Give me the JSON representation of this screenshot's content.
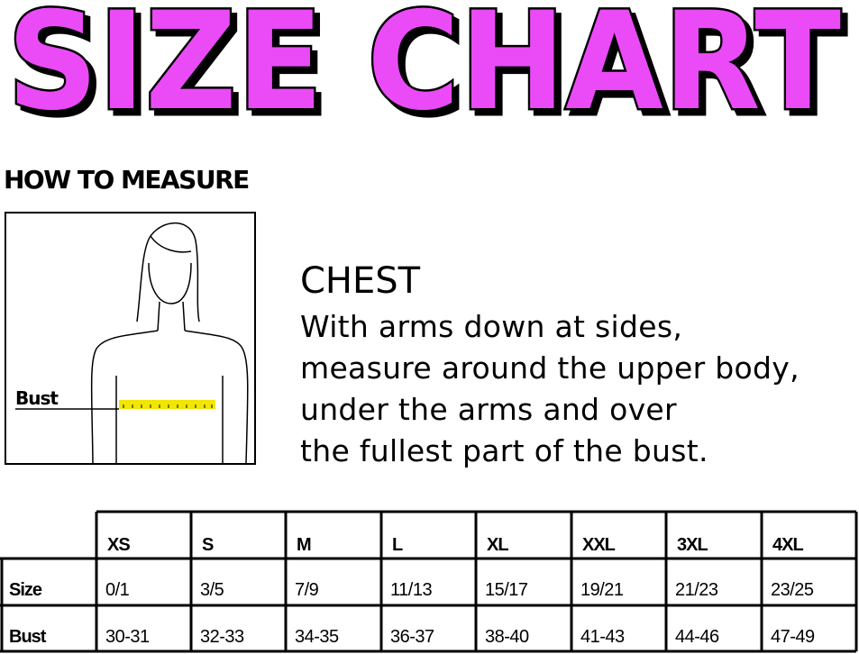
{
  "title": "SIZE CHART",
  "colors": {
    "title_fill": "#ea4cf7",
    "title_outline": "#000000",
    "tape": "#f2e600"
  },
  "how_to_measure": "HOW TO MEASURE",
  "figure_label": "Bust",
  "chest": {
    "heading": "CHEST",
    "lines": [
      "With arms down at sides,",
      "measure around the upper body,",
      "under the arms and over",
      "the fullest part of the bust."
    ]
  },
  "table": {
    "sizes": [
      "XS",
      "S",
      "M",
      "L",
      "XL",
      "XXL",
      "3XL",
      "4XL"
    ],
    "rows": [
      {
        "label": "Size",
        "values": [
          "0/1",
          "3/5",
          "7/9",
          "11/13",
          "15/17",
          "19/21",
          "21/23",
          "23/25"
        ]
      },
      {
        "label": "Bust",
        "values": [
          "30-31",
          "32-33",
          "34-35",
          "36-37",
          "38-40",
          "41-43",
          "44-46",
          "47-49"
        ]
      }
    ]
  }
}
